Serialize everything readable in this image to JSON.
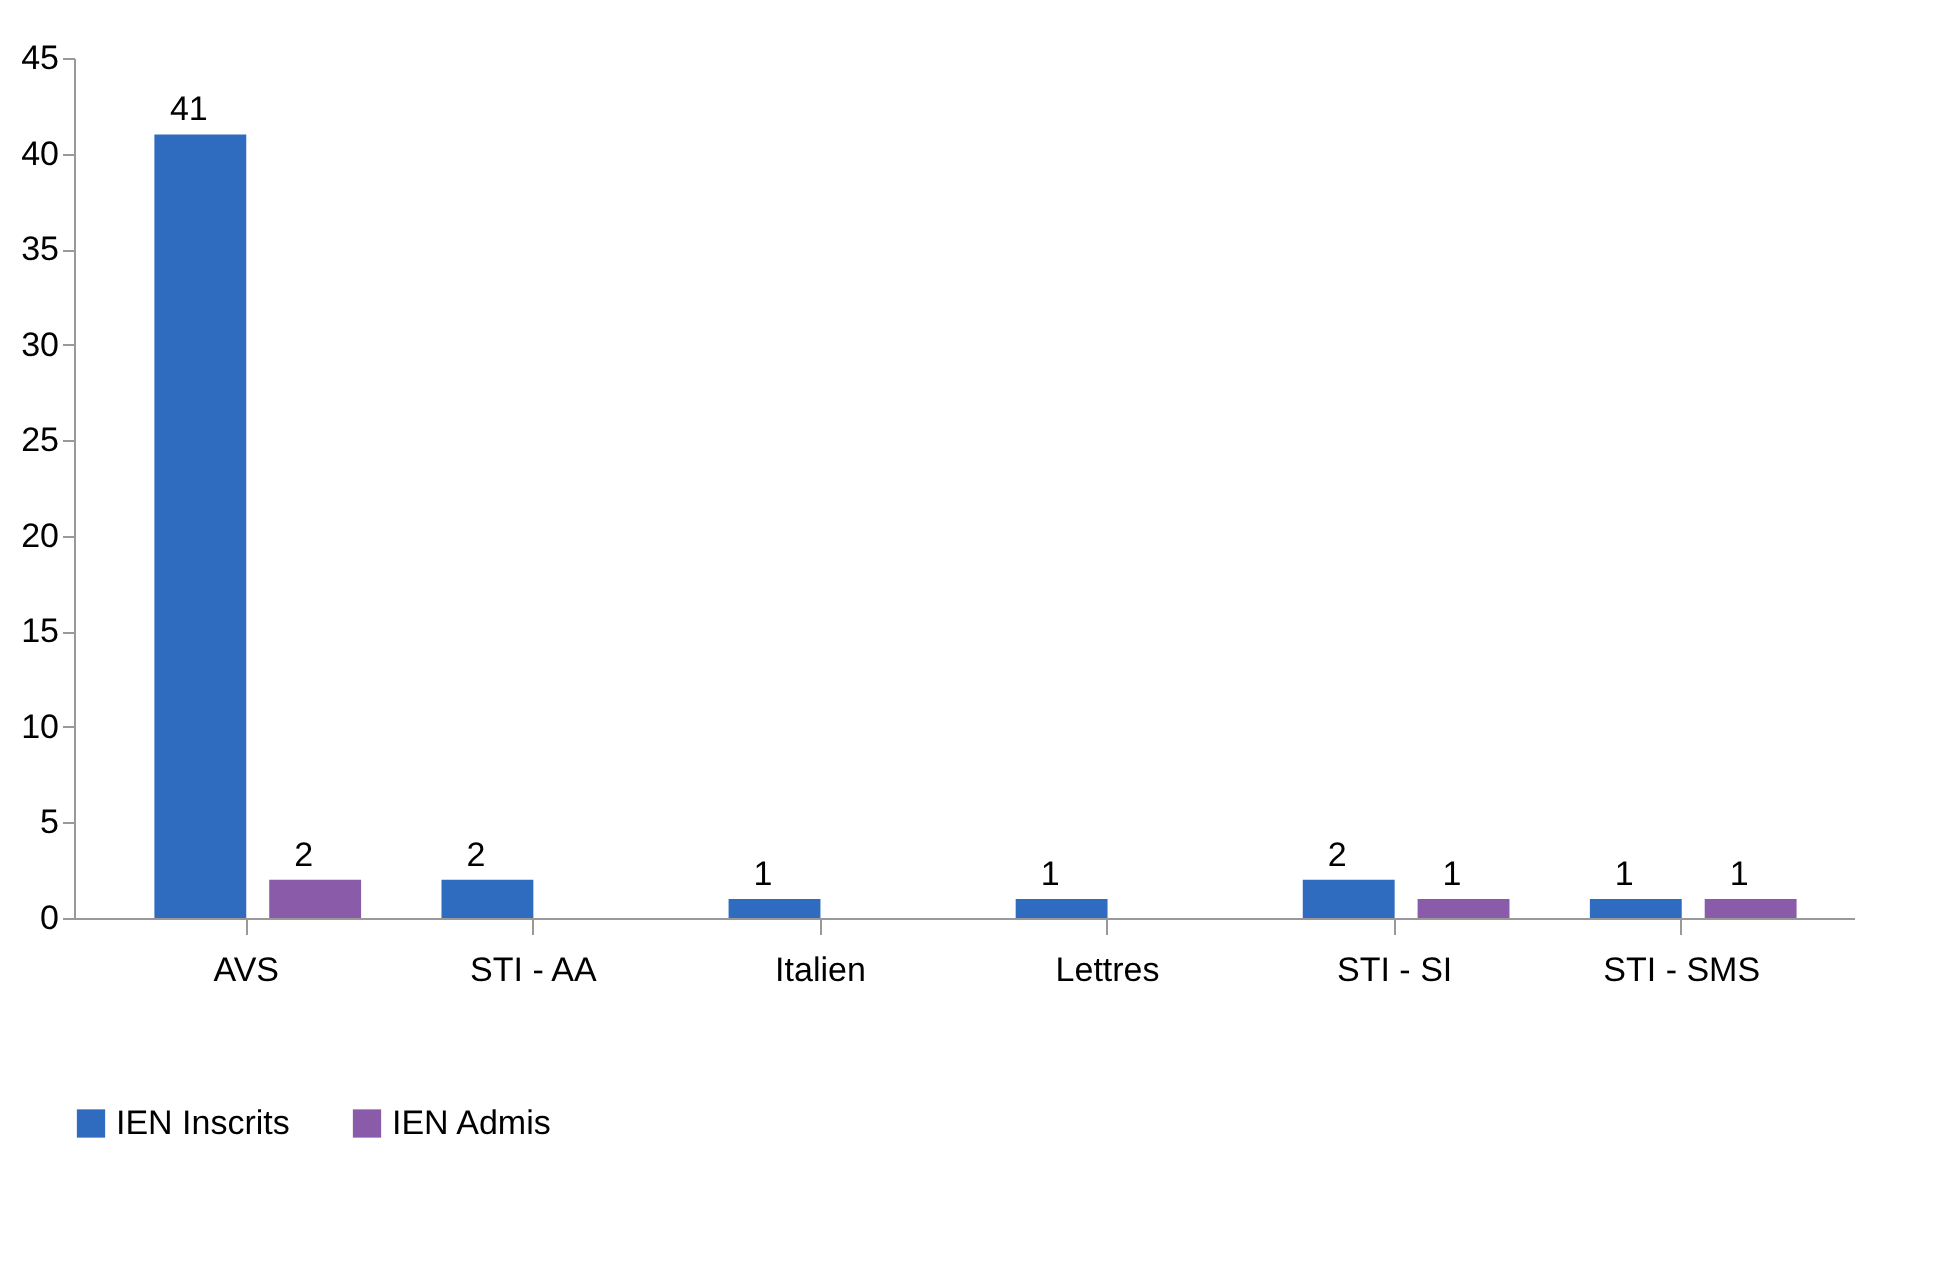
{
  "chart_data": {
    "type": "bar",
    "categories": [
      "AVS",
      "STI - AA",
      "Italien",
      "Lettres",
      "STI - SI",
      "STI - SMS"
    ],
    "series": [
      {
        "name": "IEN Inscrits",
        "color": "#2f6cbf",
        "values": [
          41,
          2,
          1,
          1,
          2,
          1
        ]
      },
      {
        "name": "IEN Admis",
        "color": "#8a5ba8",
        "values": [
          2,
          null,
          null,
          null,
          1,
          1
        ]
      }
    ],
    "ylim": [
      0,
      45
    ],
    "yticks": [
      0,
      5,
      10,
      15,
      20,
      25,
      30,
      35,
      40,
      45
    ],
    "grid": false,
    "legend": "bottom",
    "data_labels": true
  }
}
